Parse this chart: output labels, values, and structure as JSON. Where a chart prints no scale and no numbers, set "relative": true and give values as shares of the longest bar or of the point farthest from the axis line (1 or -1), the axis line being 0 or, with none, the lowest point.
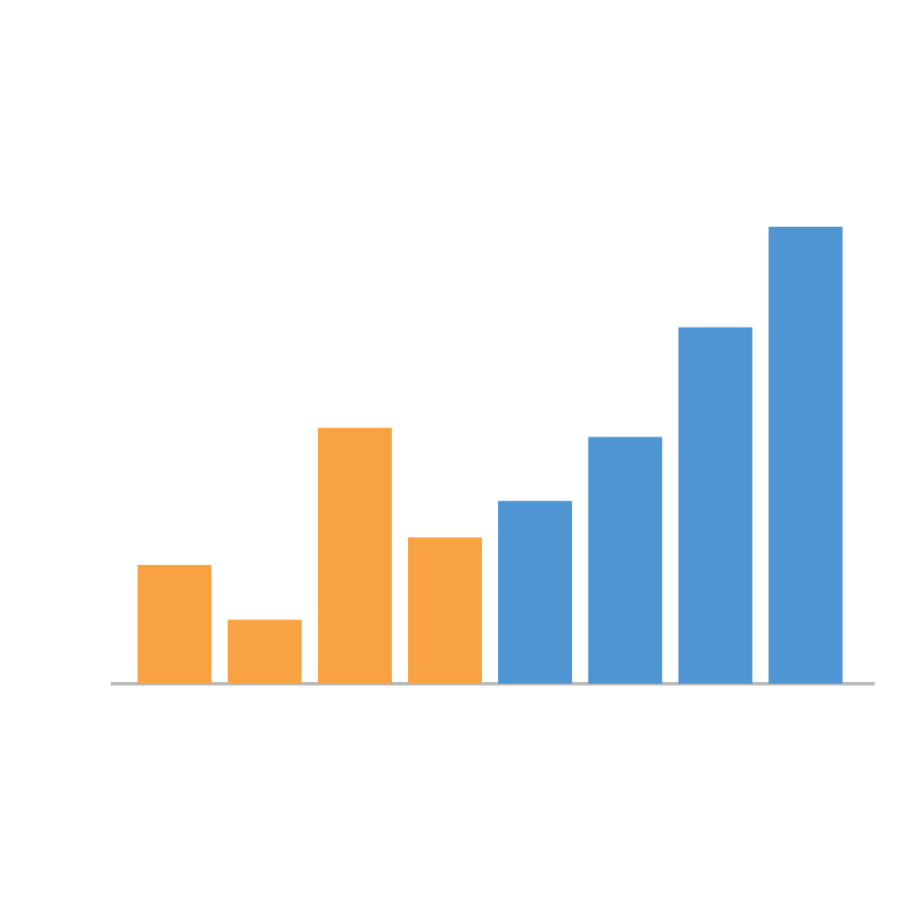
{
  "chart_data": {
    "type": "bar",
    "relative": true,
    "categories": [
      null,
      null,
      null,
      null,
      null,
      null,
      null,
      null
    ],
    "values": [
      0.26,
      0.14,
      0.56,
      0.32,
      0.4,
      0.54,
      0.78,
      1
    ],
    "colors": [
      "#f9a241",
      "#f9a241",
      "#f9a241",
      "#f9a241",
      "#4f95d4",
      "#4f95d4",
      "#4f95d4",
      "#4f95d4"
    ]
  }
}
